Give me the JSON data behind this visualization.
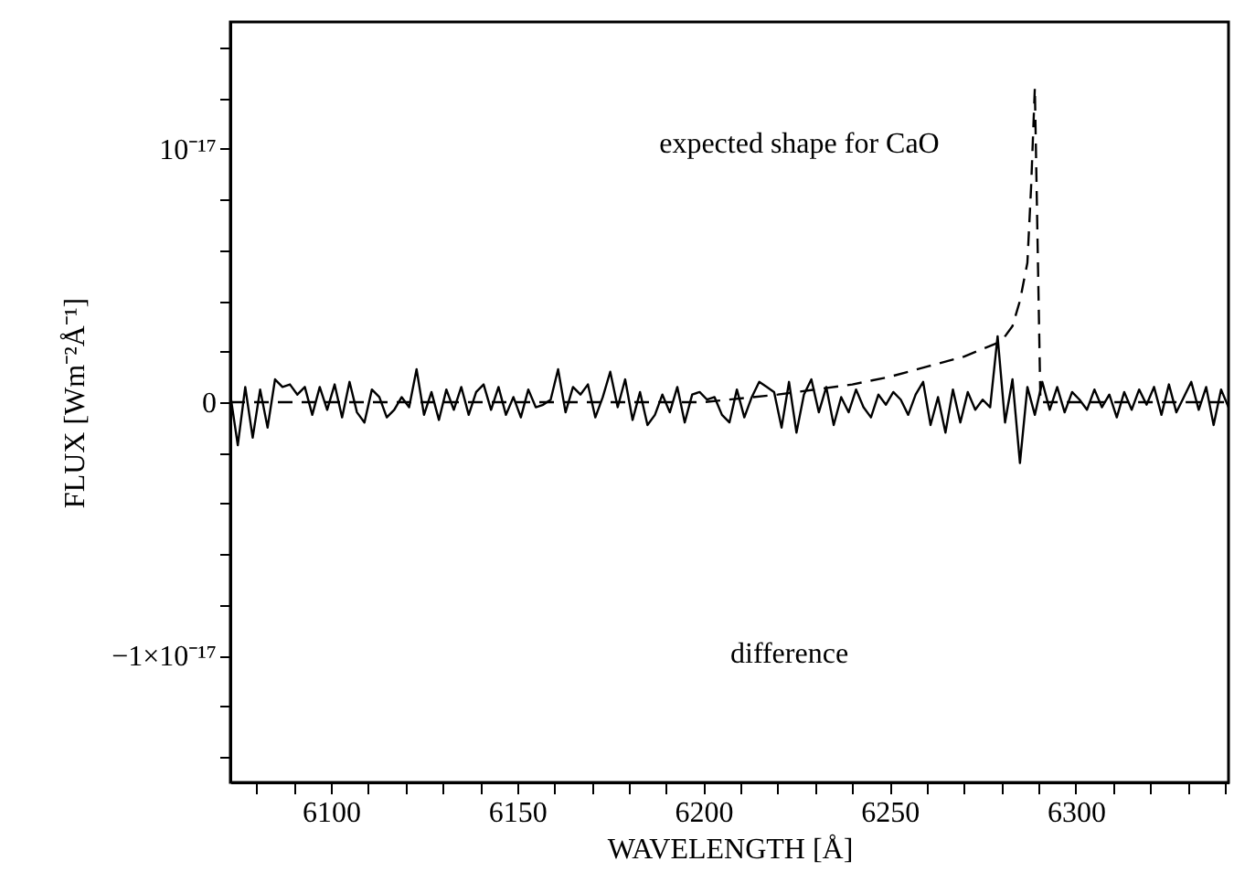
{
  "chart_data": {
    "type": "line",
    "xlabel": "WAVELENGTH [Å]",
    "ylabel": "FLUX [Wm⁻²Å⁻¹]",
    "xlim": [
      6073,
      6341
    ],
    "ylim": [
      -1.5e-17,
      1.5e-17
    ],
    "xticks": [
      {
        "value": 6080,
        "label": null
      },
      {
        "value": 6090,
        "label": null
      },
      6100,
      {
        "value": 6110,
        "label": null
      },
      {
        "value": 6120,
        "label": null
      },
      {
        "value": 6130,
        "label": null
      },
      {
        "value": 6140,
        "label": null
      },
      6150,
      {
        "value": 6160,
        "label": null
      },
      {
        "value": 6170,
        "label": null
      },
      {
        "value": 6180,
        "label": null
      },
      {
        "value": 6190,
        "label": null
      },
      6200,
      {
        "value": 6210,
        "label": null
      },
      {
        "value": 6220,
        "label": null
      },
      {
        "value": 6230,
        "label": null
      },
      {
        "value": 6240,
        "label": null
      },
      6250,
      {
        "value": 6260,
        "label": null
      },
      {
        "value": 6270,
        "label": null
      },
      {
        "value": 6280,
        "label": null
      },
      {
        "value": 6290,
        "label": null
      },
      6300,
      {
        "value": 6310,
        "label": null
      },
      {
        "value": 6320,
        "label": null
      },
      {
        "value": 6330,
        "label": null
      },
      {
        "value": 6340,
        "label": null
      }
    ],
    "yticks": [
      {
        "value": -1.4e-17,
        "label": null
      },
      {
        "value": -1.2e-17,
        "label": null
      },
      {
        "value": -1e-17,
        "label": "−1×10⁻¹⁷"
      },
      {
        "value": -8e-18,
        "label": null
      },
      {
        "value": -6e-18,
        "label": null
      },
      {
        "value": -4e-18,
        "label": null
      },
      {
        "value": -2e-18,
        "label": null
      },
      0,
      {
        "value": 2e-18,
        "label": null
      },
      {
        "value": 4e-18,
        "label": null
      },
      {
        "value": 6e-18,
        "label": null
      },
      {
        "value": 8e-18,
        "label": null
      },
      {
        "value": 1e-17,
        "label": "10⁻¹⁷"
      },
      {
        "value": 1.2e-17,
        "label": null
      },
      {
        "value": 1.4e-17,
        "label": null
      }
    ],
    "grid": false,
    "annotations": [
      "expected shape for CaO",
      "difference"
    ],
    "series": [
      {
        "color": "#000000",
        "line_style": "dashed",
        "x": [
          6073,
          6200,
          6220,
          6240,
          6250,
          6260,
          6270,
          6280,
          6283,
          6285,
          6287,
          6288,
          6289,
          6290.5,
          6341
        ],
        "values": [
          0,
          0,
          3e-19,
          7e-19,
          1e-18,
          1.4e-18,
          1.8e-18,
          2.4e-18,
          3e-18,
          4e-18,
          5.5e-18,
          8.5e-18,
          1.24e-17,
          0,
          0
        ]
      },
      {
        "color": "#000000",
        "line_style": "solid",
        "x": [
          6073,
          6075,
          6077,
          6079,
          6081,
          6083,
          6085,
          6087,
          6089,
          6091,
          6093,
          6095,
          6097,
          6099,
          6101,
          6103,
          6105,
          6107,
          6109,
          6111,
          6113,
          6115,
          6117,
          6119,
          6121,
          6123,
          6125,
          6127,
          6129,
          6131,
          6133,
          6135,
          6137,
          6139,
          6141,
          6143,
          6145,
          6147,
          6149,
          6151,
          6153,
          6155,
          6157,
          6159,
          6161,
          6163,
          6165,
          6167,
          6169,
          6171,
          6173,
          6175,
          6177,
          6179,
          6181,
          6183,
          6185,
          6187,
          6189,
          6191,
          6193,
          6195,
          6197,
          6199,
          6201,
          6203,
          6205,
          6207,
          6209,
          6211,
          6213,
          6215,
          6217,
          6219,
          6221,
          6223,
          6225,
          6227,
          6229,
          6231,
          6233,
          6235,
          6237,
          6239,
          6241,
          6243,
          6245,
          6247,
          6249,
          6251,
          6253,
          6255,
          6257,
          6259,
          6261,
          6263,
          6265,
          6267,
          6269,
          6271,
          6273,
          6275,
          6277,
          6279,
          6281,
          6283,
          6285,
          6287,
          6289,
          6291,
          6293,
          6295,
          6297,
          6299,
          6301,
          6303,
          6305,
          6307,
          6309,
          6311,
          6313,
          6315,
          6317,
          6319,
          6321,
          6323,
          6325,
          6327,
          6329,
          6331,
          6333,
          6335,
          6337,
          6339,
          6341
        ],
        "values": [
          3e-19,
          -1.7e-18,
          6e-19,
          -1.4e-18,
          5e-19,
          -1e-18,
          9e-19,
          6e-19,
          7e-19,
          3e-19,
          6e-19,
          -5e-19,
          6e-19,
          -3e-19,
          7e-19,
          -6e-19,
          8e-19,
          -4e-19,
          -8e-19,
          5e-19,
          2e-19,
          -6e-19,
          -3e-19,
          2e-19,
          -2e-19,
          1.3e-18,
          -5e-19,
          4e-19,
          -7e-19,
          5e-19,
          -3e-19,
          6e-19,
          -5e-19,
          4e-19,
          7e-19,
          -3e-19,
          6e-19,
          -5e-19,
          2e-19,
          -6e-19,
          5e-19,
          -2e-19,
          -1e-19,
          1e-19,
          1.3e-18,
          -4e-19,
          6e-19,
          3e-19,
          7e-19,
          -6e-19,
          2e-19,
          1.2e-18,
          -2e-19,
          9e-19,
          -7e-19,
          4e-19,
          -9e-19,
          -5e-19,
          3e-19,
          -4e-19,
          6e-19,
          -8e-19,
          3e-19,
          4e-19,
          1e-19,
          2e-19,
          -5e-19,
          -8e-19,
          5e-19,
          -6e-19,
          2e-19,
          8e-19,
          6e-19,
          4e-19,
          -1e-18,
          8e-19,
          -1.2e-18,
          3e-19,
          9e-19,
          -4e-19,
          6e-19,
          -9e-19,
          2e-19,
          -4e-19,
          5e-19,
          -2e-19,
          -6e-19,
          3e-19,
          -1e-19,
          4e-19,
          1e-19,
          -5e-19,
          3e-19,
          8e-19,
          -9e-19,
          2e-19,
          -1.2e-18,
          5e-19,
          -8e-19,
          4e-19,
          -3e-19,
          1e-19,
          -2e-19,
          2.6e-18,
          -8e-19,
          9e-19,
          -2.4e-18,
          6e-19,
          -5e-19,
          8e-19,
          -3e-19,
          6e-19,
          -4e-19,
          4e-19,
          1e-19,
          -3e-19,
          5e-19,
          -2e-19,
          3e-19,
          -6e-19,
          4e-19,
          -3e-19,
          5e-19,
          -1e-19,
          6e-19,
          -5e-19,
          7e-19,
          -4e-19,
          2e-19,
          8e-19,
          -3e-19,
          6e-19,
          -9e-19,
          5e-19,
          -2e-19
        ]
      }
    ]
  }
}
